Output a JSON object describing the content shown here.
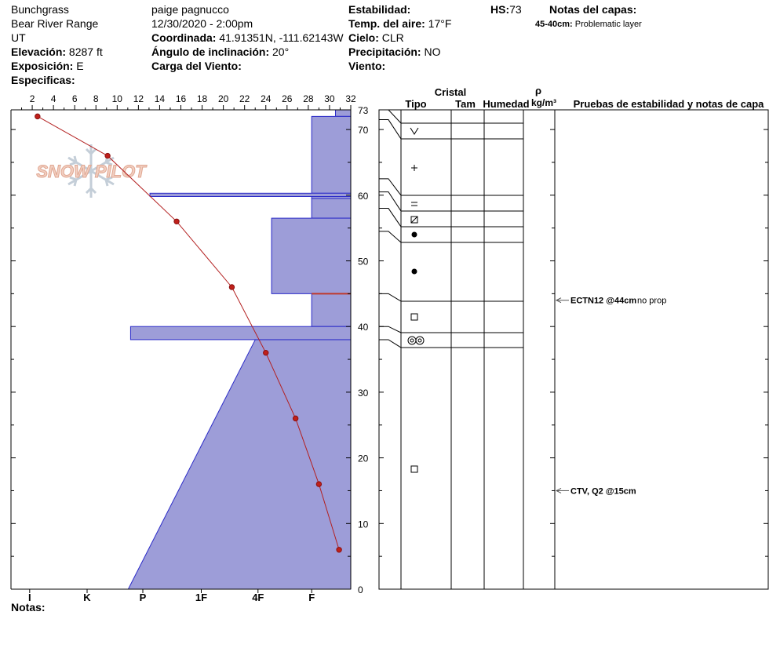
{
  "header": {
    "location_name": "Bunchgrass",
    "range": "Bear River Range",
    "state": "UT",
    "elevation_label": "Elevación:",
    "elevation_value": "8287 ft",
    "aspect_label": "Exposición:",
    "aspect_value": "E",
    "specifics_label": "Especificas:",
    "observer": "paige pagnucco",
    "datetime": "12/30/2020 - 2:00pm",
    "coord_label": "Coordinada:",
    "coord_value": "41.91351N, -111.62143W",
    "slope_label": "Ángulo de inclinación:",
    "slope_value": "20°",
    "wind_load_label": "Carga del Viento:",
    "stability_label": "Estabilidad:",
    "air_temp_label": "Temp. del aire:",
    "air_temp_value": "17°F",
    "sky_label": "Cielo:",
    "sky_value": "CLR",
    "precip_label": "Precipitación:",
    "precip_value": "NO",
    "wind_label": "Viento:",
    "hs_label": "HS:",
    "hs_value": "73",
    "layer_notes_label": "Notas del capas:",
    "layer_note_range": "45-40cm:",
    "layer_note_text": "Problematic layer"
  },
  "footer": {
    "notes_label": "Notas:"
  },
  "watermark": {
    "text": "SNOW PILOT"
  },
  "columns": {
    "crystal": "Cristal",
    "type": "Tipo",
    "size": "Tam",
    "moisture": "Humedad",
    "density_symbol": "ρ",
    "density_unit": "kg/m³",
    "tests_header": "Pruebas de estabilidad y notas de capa"
  },
  "chart_data": {
    "type": "snow_profile",
    "depth_axis": {
      "min": 0,
      "max": 73,
      "unit": "cm",
      "tick_labels": [
        0,
        10,
        20,
        30,
        40,
        50,
        60,
        70,
        73
      ]
    },
    "temperature_axis": {
      "min": 0,
      "max": 32,
      "tick_labels": [
        2,
        4,
        6,
        8,
        10,
        12,
        14,
        16,
        18,
        20,
        22,
        24,
        26,
        28,
        30,
        32
      ]
    },
    "hardness_axis": {
      "labels": [
        "I",
        "K",
        "P",
        "1F",
        "4F",
        "F"
      ]
    },
    "temperature_profile": [
      {
        "depth": 72,
        "temp": 2.5
      },
      {
        "depth": 66,
        "temp": 9.1
      },
      {
        "depth": 56,
        "temp": 15.6
      },
      {
        "depth": 46,
        "temp": 20.8
      },
      {
        "depth": 36,
        "temp": 24.0
      },
      {
        "depth": 26,
        "temp": 26.8
      },
      {
        "depth": 16,
        "temp": 29.0
      },
      {
        "depth": 6,
        "temp": 30.9
      }
    ],
    "hardness_layers": [
      {
        "top": 73,
        "bottom": 72,
        "hardness": 0.955
      },
      {
        "top": 72,
        "bottom": 60.3,
        "hardness": 0.885
      },
      {
        "top": 60.3,
        "bottom": 59.8,
        "hardness": 0.409
      },
      {
        "top": 59.8,
        "bottom": 59.5,
        "hardness": 0.885
      },
      {
        "top": 59.5,
        "bottom": 56.5,
        "hardness": 0.885
      },
      {
        "top": 56.5,
        "bottom": 45,
        "hardness": 0.767
      },
      {
        "top": 45,
        "bottom": 40,
        "hardness": 0.885
      },
      {
        "top": 40,
        "bottom": 38,
        "hardness": 0.352
      },
      {
        "top": 38,
        "bottom": 0,
        "hardness_top": 0.719,
        "hardness_bottom": 0.345
      }
    ],
    "grain_layers": [
      {
        "top": 73,
        "bottom": 71.5,
        "symbol": "v",
        "depth": 71.5
      },
      {
        "top": 71.5,
        "bottom": 62.5,
        "symbol": "+",
        "depth": 66
      },
      {
        "top": 62.5,
        "bottom": 60.5,
        "symbol": "=",
        "depth": 60.5
      },
      {
        "top": 60.5,
        "bottom": 58,
        "symbol": "mixed_facet",
        "depth": 58.5
      },
      {
        "top": 58,
        "bottom": 54.5,
        "symbol": "dot",
        "depth": 56
      },
      {
        "top": 54.5,
        "bottom": 45,
        "symbol": "dot",
        "depth": 50
      },
      {
        "top": 45,
        "bottom": 40,
        "symbol": "square",
        "depth": 42.5
      },
      {
        "top": 40,
        "bottom": 38,
        "symbol": "double_ring",
        "depth": 39.5
      },
      {
        "top": 38,
        "bottom": 0,
        "symbol": "square",
        "depth": 19
      }
    ],
    "tests": [
      {
        "depth": 44,
        "label": "ECTN12 @44cm",
        "note": "no prop"
      },
      {
        "depth": 15,
        "label": "CTV, Q2 @15cm",
        "note": ""
      }
    ]
  }
}
